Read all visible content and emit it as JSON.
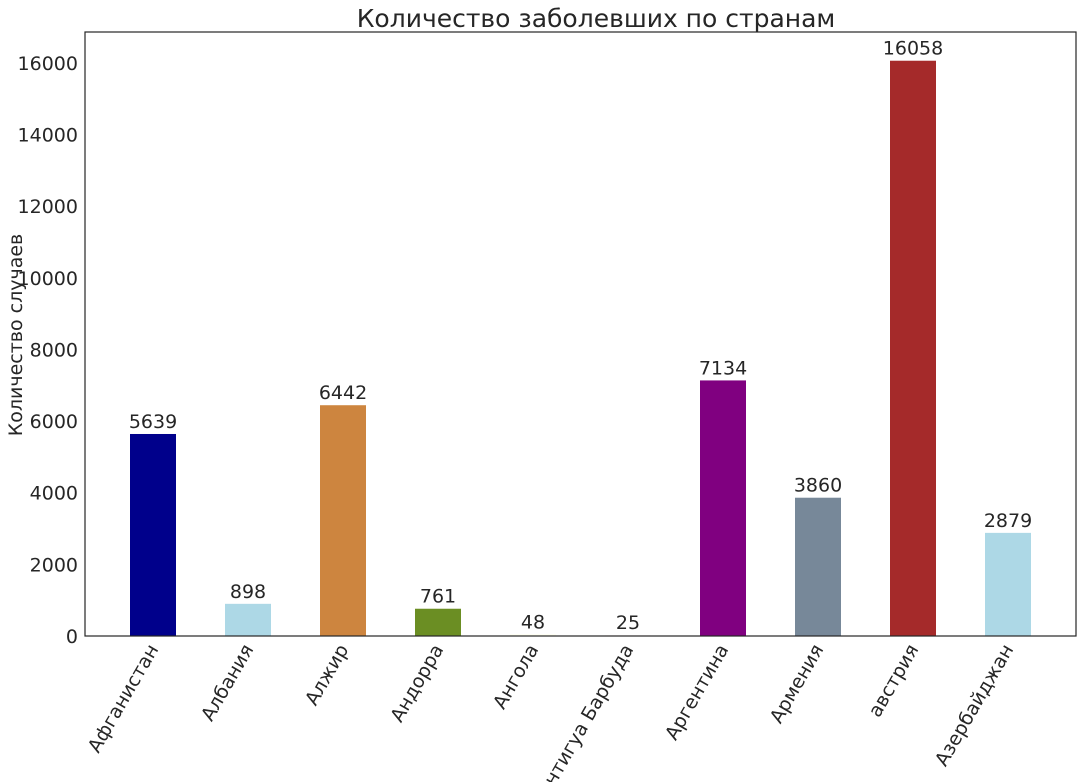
{
  "chart_data": {
    "type": "bar",
    "title": "Количество заболевших по странам",
    "xlabel": "",
    "ylabel": "Количество случаев",
    "categories": [
      "Афганистан",
      "Албания",
      "Алжир",
      "Андорра",
      "Ангола",
      "Антигуа Барбуда",
      "Аргентина",
      "Армения",
      "австрия",
      "Азербайджан"
    ],
    "values": [
      5639,
      898,
      6442,
      761,
      48,
      25,
      7134,
      3860,
      16058,
      2879
    ],
    "colors": [
      "#00008b",
      "#add8e6",
      "#cd853f",
      "#6b8e23",
      "#fffff0",
      "#fffafa",
      "#800080",
      "#778899",
      "#a52a2a",
      "#add8e6"
    ],
    "ylim": [
      0,
      16860
    ],
    "yticks": [
      0,
      2000,
      4000,
      6000,
      8000,
      10000,
      12000,
      14000,
      16000
    ],
    "grid": false,
    "legend": "none"
  }
}
